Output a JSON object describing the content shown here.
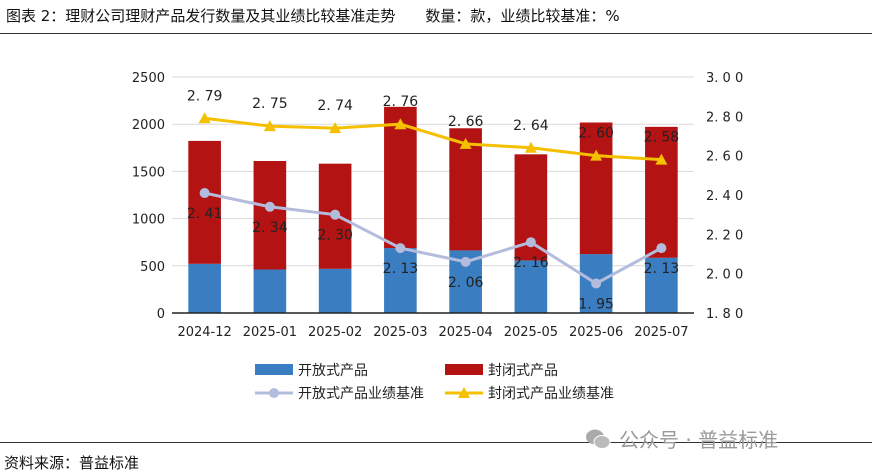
{
  "title": {
    "main": "图表 2：理财公司理财产品发行数量及其业绩比较基准走势",
    "units": "数量：款，业绩比较基准：%"
  },
  "source": "资料来源：普益标准",
  "watermark": {
    "text": "公众号 · 普益标准",
    "icon": "wechat-icon"
  },
  "chart_data": {
    "type": "bar+line",
    "categories": [
      "2024-12",
      "2025-01",
      "2025-02",
      "2025-03",
      "2025-04",
      "2025-05",
      "2025-06",
      "2025-07"
    ],
    "stacked": true,
    "y_left": {
      "range": [
        0,
        2500
      ],
      "ticks": [
        "0",
        "500",
        "1000",
        "1500",
        "2000",
        "2500"
      ]
    },
    "y_right": {
      "range": [
        1.8,
        3.0
      ],
      "ticks": [
        "1.80",
        "2.00",
        "2.20",
        "2.40",
        "2.60",
        "2.80",
        "3.00"
      ]
    },
    "grid": true,
    "legend_position": "bottom",
    "bar_series": [
      {
        "name": "开放式产品",
        "color": "#3a7dc0",
        "values": [
          521,
          461,
          468,
          688,
          663,
          557,
          624,
          585
        ]
      },
      {
        "name": "封闭式产品",
        "color": "#b31312",
        "values": [
          1302,
          1149,
          1114,
          1496,
          1294,
          1124,
          1394,
          1387
        ]
      }
    ],
    "line_series": [
      {
        "name": "开放式产品业绩基准",
        "color": "#b4bcde",
        "marker": "circle",
        "axis": "right",
        "values": [
          2.41,
          2.34,
          2.3,
          2.13,
          2.06,
          2.16,
          1.95,
          2.13
        ],
        "labels": [
          "2.41",
          "2.34",
          "2.30",
          "2.13",
          "2.06",
          "2.16",
          "1.95",
          "2.13"
        ]
      },
      {
        "name": "封闭式产品业绩基准",
        "color": "#f5c000",
        "marker": "triangle",
        "axis": "right",
        "values": [
          2.79,
          2.75,
          2.74,
          2.76,
          2.66,
          2.64,
          2.6,
          2.58
        ],
        "labels": [
          "2.79",
          "2.75",
          "2.74",
          "2.76",
          "2.66",
          "2.64",
          "2.60",
          "2.58"
        ]
      }
    ]
  }
}
